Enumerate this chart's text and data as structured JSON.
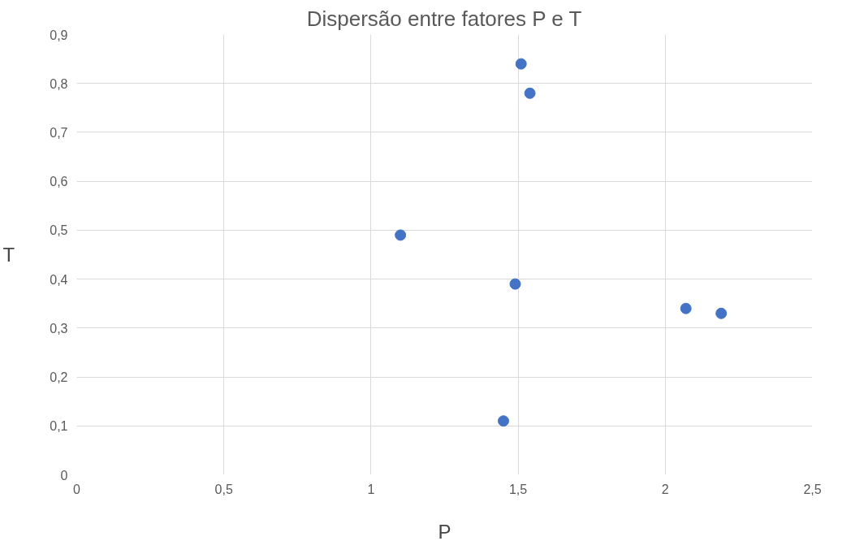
{
  "chart_data": {
    "type": "scatter",
    "title": "Dispersão entre fatores P e T",
    "xlabel": "P",
    "ylabel": "T",
    "x": [
      1.51,
      1.54,
      1.1,
      1.49,
      2.07,
      2.19,
      1.45
    ],
    "series": [
      {
        "color": "#4472c4",
        "values": [
          0.84,
          0.78,
          0.49,
          0.39,
          0.34,
          0.33,
          0.11
        ]
      }
    ],
    "xlim": [
      0,
      2.5
    ],
    "ylim": [
      0,
      0.9
    ],
    "xticks": [
      0,
      {
        "value": 0.5,
        "label": "0,5"
      },
      1,
      {
        "value": 1.5,
        "label": "1,5"
      },
      2,
      {
        "value": 2.5,
        "label": "2,5"
      }
    ],
    "yticks": [
      0,
      {
        "value": 0.1,
        "label": "0,1"
      },
      {
        "value": 0.2,
        "label": "0,2"
      },
      {
        "value": 0.3,
        "label": "0,3"
      },
      {
        "value": 0.4,
        "label": "0,4"
      },
      {
        "value": 0.5,
        "label": "0,5"
      },
      {
        "value": 0.6,
        "label": "0,6"
      },
      {
        "value": 0.7,
        "label": "0,7"
      },
      {
        "value": 0.8,
        "label": "0,8"
      },
      {
        "value": 0.9,
        "label": "0,9"
      }
    ],
    "grid": true,
    "marker": "circle"
  }
}
